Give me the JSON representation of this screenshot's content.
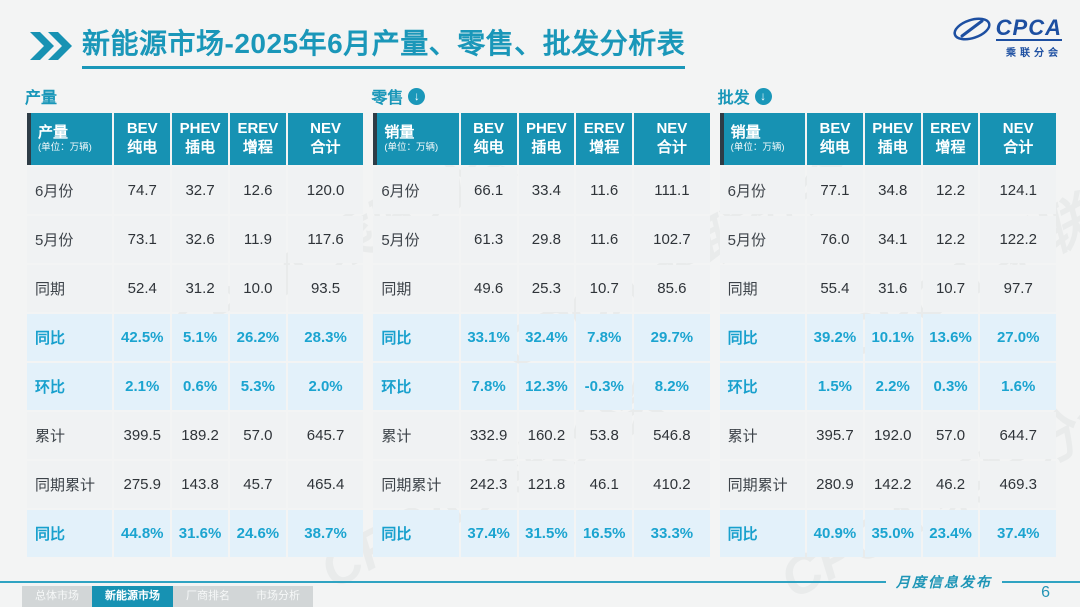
{
  "colors": {
    "accent_teal": "#1792b3",
    "title_teal": "#1a97b9",
    "percent_text": "#1ba4d0",
    "percent_row_bg": "#e3f1fa",
    "normal_row_bg": "#f0f2f3",
    "logo_blue": "#1d4fa1",
    "tab_inactive_bg": "#d2d6d7"
  },
  "header": {
    "title_bold": "新能源市场",
    "title_rest": "-2025年6月产量、零售、批发分析表",
    "logo_text": "CPCA",
    "logo_subtext": "乘联分会"
  },
  "tables": [
    {
      "id": "production",
      "section_label": "产量",
      "has_arrow": false,
      "first_header": "产量",
      "unit": "(单位：万辆)",
      "columns": [
        {
          "top": "BEV",
          "bottom": "纯电"
        },
        {
          "top": "PHEV",
          "bottom": "插电"
        },
        {
          "top": "EREV",
          "bottom": "增程"
        },
        {
          "top": "NEV",
          "bottom": "合计"
        }
      ],
      "rows": [
        {
          "label": "6月份",
          "type": "normal",
          "values": [
            "74.7",
            "32.7",
            "12.6",
            "120.0"
          ]
        },
        {
          "label": "5月份",
          "type": "normal",
          "values": [
            "73.1",
            "32.6",
            "11.9",
            "117.6"
          ]
        },
        {
          "label": "同期",
          "type": "normal",
          "values": [
            "52.4",
            "31.2",
            "10.0",
            "93.5"
          ]
        },
        {
          "label": "同比",
          "type": "percent",
          "values": [
            "42.5%",
            "5.1%",
            "26.2%",
            "28.3%"
          ]
        },
        {
          "label": "环比",
          "type": "percent",
          "values": [
            "2.1%",
            "0.6%",
            "5.3%",
            "2.0%"
          ]
        },
        {
          "label": "累计",
          "type": "normal",
          "values": [
            "399.5",
            "189.2",
            "57.0",
            "645.7"
          ]
        },
        {
          "label": "同期累计",
          "type": "normal",
          "values": [
            "275.9",
            "143.8",
            "45.7",
            "465.4"
          ]
        },
        {
          "label": "同比",
          "type": "percent",
          "values": [
            "44.8%",
            "31.6%",
            "24.6%",
            "38.7%"
          ]
        }
      ]
    },
    {
      "id": "retail",
      "section_label": "零售",
      "has_arrow": true,
      "arrow_icon": "down-arrow-circle-icon",
      "first_header": "销量",
      "unit": "(单位：万辆)",
      "columns": [
        {
          "top": "BEV",
          "bottom": "纯电"
        },
        {
          "top": "PHEV",
          "bottom": "插电"
        },
        {
          "top": "EREV",
          "bottom": "增程"
        },
        {
          "top": "NEV",
          "bottom": "合计"
        }
      ],
      "rows": [
        {
          "label": "6月份",
          "type": "normal",
          "values": [
            "66.1",
            "33.4",
            "11.6",
            "111.1"
          ]
        },
        {
          "label": "5月份",
          "type": "normal",
          "values": [
            "61.3",
            "29.8",
            "11.6",
            "102.7"
          ]
        },
        {
          "label": "同期",
          "type": "normal",
          "values": [
            "49.6",
            "25.3",
            "10.7",
            "85.6"
          ]
        },
        {
          "label": "同比",
          "type": "percent",
          "values": [
            "33.1%",
            "32.4%",
            "7.8%",
            "29.7%"
          ]
        },
        {
          "label": "环比",
          "type": "percent",
          "values": [
            "7.8%",
            "12.3%",
            "-0.3%",
            "8.2%"
          ]
        },
        {
          "label": "累计",
          "type": "normal",
          "values": [
            "332.9",
            "160.2",
            "53.8",
            "546.8"
          ]
        },
        {
          "label": "同期累计",
          "type": "normal",
          "values": [
            "242.3",
            "121.8",
            "46.1",
            "410.2"
          ]
        },
        {
          "label": "同比",
          "type": "percent",
          "values": [
            "37.4%",
            "31.5%",
            "16.5%",
            "33.3%"
          ]
        }
      ]
    },
    {
      "id": "wholesale",
      "section_label": "批发",
      "has_arrow": true,
      "arrow_icon": "down-arrow-circle-icon",
      "first_header": "销量",
      "unit": "(单位：万辆)",
      "columns": [
        {
          "top": "BEV",
          "bottom": "纯电"
        },
        {
          "top": "PHEV",
          "bottom": "插电"
        },
        {
          "top": "EREV",
          "bottom": "增程"
        },
        {
          "top": "NEV",
          "bottom": "合计"
        }
      ],
      "rows": [
        {
          "label": "6月份",
          "type": "normal",
          "values": [
            "77.1",
            "34.8",
            "12.2",
            "124.1"
          ]
        },
        {
          "label": "5月份",
          "type": "normal",
          "values": [
            "76.0",
            "34.1",
            "12.2",
            "122.2"
          ]
        },
        {
          "label": "同期",
          "type": "normal",
          "values": [
            "55.4",
            "31.6",
            "10.7",
            "97.7"
          ]
        },
        {
          "label": "同比",
          "type": "percent",
          "values": [
            "39.2%",
            "10.1%",
            "13.6%",
            "27.0%"
          ]
        },
        {
          "label": "环比",
          "type": "percent",
          "values": [
            "1.5%",
            "2.2%",
            "0.3%",
            "1.6%"
          ]
        },
        {
          "label": "累计",
          "type": "normal",
          "values": [
            "395.7",
            "192.0",
            "57.0",
            "644.7"
          ]
        },
        {
          "label": "同期累计",
          "type": "normal",
          "values": [
            "280.9",
            "142.2",
            "46.2",
            "469.3"
          ]
        },
        {
          "label": "同比",
          "type": "percent",
          "values": [
            "40.9%",
            "35.0%",
            "23.4%",
            "37.4%"
          ]
        }
      ]
    }
  ],
  "footer": {
    "note": "月度信息发布",
    "page": "6",
    "tabs": [
      {
        "label": "总体市场",
        "active": false
      },
      {
        "label": "新能源市场",
        "active": true
      },
      {
        "label": "厂商排名",
        "active": false
      },
      {
        "label": "市场分析",
        "active": false
      }
    ]
  },
  "watermark": "CPCA 乘联分会"
}
